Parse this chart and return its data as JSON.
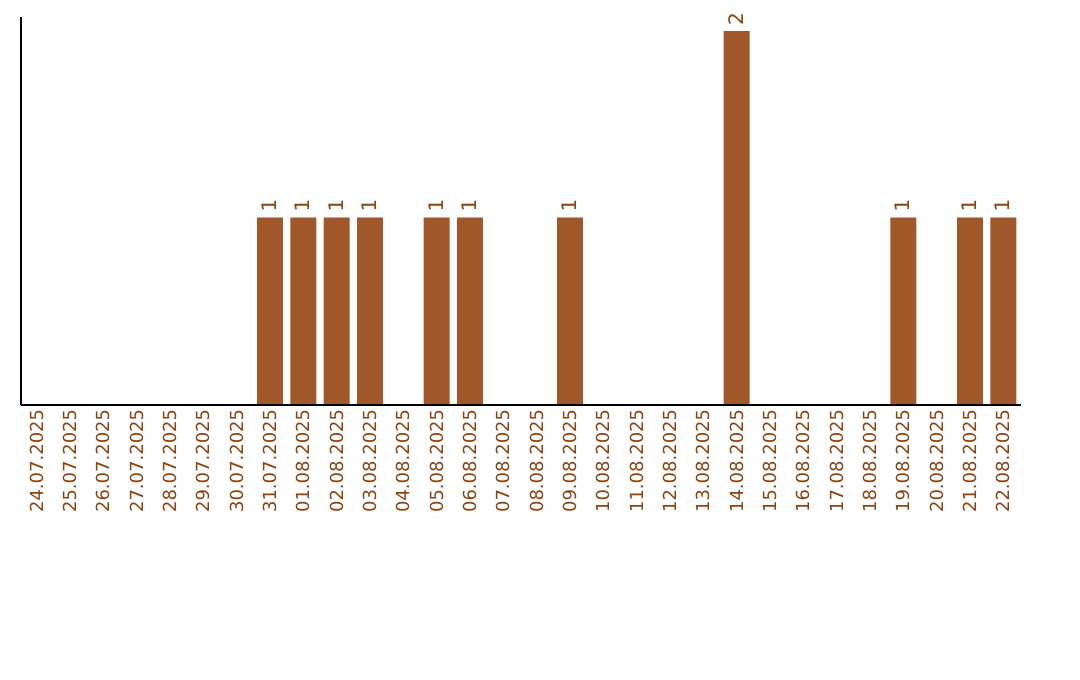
{
  "chart_data": {
    "type": "bar",
    "categories": [
      "24.07.2025",
      "25.07.2025",
      "26.07.2025",
      "27.07.2025",
      "28.07.2025",
      "29.07.2025",
      "30.07.2025",
      "31.07.2025",
      "01.08.2025",
      "02.08.2025",
      "03.08.2025",
      "04.08.2025",
      "05.08.2025",
      "06.08.2025",
      "07.08.2025",
      "08.08.2025",
      "09.08.2025",
      "10.08.2025",
      "11.08.2025",
      "12.08.2025",
      "13.08.2025",
      "14.08.2025",
      "15.08.2025",
      "16.08.2025",
      "17.08.2025",
      "18.08.2025",
      "19.08.2025",
      "20.08.2025",
      "21.08.2025",
      "22.08.2025"
    ],
    "values": [
      0,
      0,
      0,
      0,
      0,
      0,
      0,
      1,
      1,
      1,
      1,
      0,
      1,
      1,
      0,
      0,
      1,
      0,
      0,
      0,
      0,
      2,
      0,
      0,
      0,
      0,
      1,
      0,
      1,
      1
    ],
    "value_labels": [
      null,
      null,
      null,
      null,
      null,
      null,
      null,
      "1",
      "1",
      "1",
      "1",
      null,
      "1",
      "1",
      null,
      null,
      "1",
      null,
      null,
      null,
      null,
      "2",
      null,
      null,
      null,
      null,
      "1",
      null,
      "1",
      "1"
    ],
    "color": "#a0582a",
    "grid": false
  }
}
